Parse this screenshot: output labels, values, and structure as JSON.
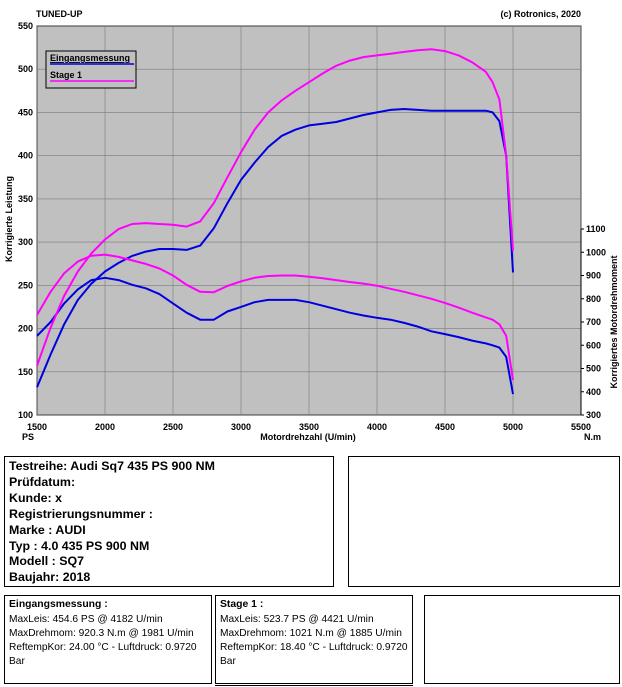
{
  "header": {
    "left_title": "TUNED-UP",
    "right_title": "(c) Rotronics, 2020"
  },
  "chart_data": {
    "type": "line",
    "xlabel": "Motordrehzahl (U/min)",
    "ylabel_left": "Korrigierte Leistung",
    "ylabel_right": "Korrigiertes Motordrehmoment",
    "unit_left": "PS",
    "unit_right": "N.m",
    "xlim": [
      1500,
      5500
    ],
    "ylim_left": [
      100,
      550
    ],
    "ylim_right": [
      300,
      1100
    ],
    "x_ticks": [
      "1500",
      "2000",
      "2500",
      "3000",
      "3500",
      "4000",
      "4500",
      "5000",
      "5500"
    ],
    "y_ticks_left": [
      "100",
      "150",
      "200",
      "250",
      "300",
      "350",
      "400",
      "450",
      "500",
      "550"
    ],
    "y_ticks_right": [
      "300",
      "400",
      "500",
      "600",
      "700",
      "800",
      "900",
      "1000",
      "1100"
    ],
    "grid": true,
    "legend_position": "top-left",
    "series": [
      {
        "name": "Eingangsmessung",
        "quantity": "power",
        "color": "#0000e0",
        "x": [
          1500,
          1600,
          1700,
          1800,
          1900,
          2000,
          2100,
          2200,
          2300,
          2400,
          2500,
          2600,
          2700,
          2800,
          2900,
          3000,
          3100,
          3200,
          3300,
          3400,
          3500,
          3600,
          3700,
          3800,
          3900,
          4000,
          4100,
          4200,
          4300,
          4400,
          4500,
          4600,
          4700,
          4800,
          4850,
          4900,
          4950,
          5000
        ],
        "values": [
          132,
          170,
          205,
          233,
          252,
          266,
          276,
          284,
          289,
          292,
          292,
          291,
          296,
          316,
          345,
          372,
          392,
          410,
          423,
          430,
          435,
          437,
          439,
          443,
          447,
          450,
          453,
          454,
          453,
          452,
          452,
          452,
          452,
          452,
          450,
          440,
          400,
          265
        ]
      },
      {
        "name": "Eingangsmessung",
        "quantity": "torque",
        "color": "#0000e0",
        "x": [
          1500,
          1600,
          1700,
          1800,
          1900,
          2000,
          2100,
          2200,
          2300,
          2400,
          2500,
          2600,
          2700,
          2800,
          2900,
          3000,
          3100,
          3200,
          3300,
          3400,
          3500,
          3600,
          3700,
          3800,
          3900,
          4000,
          4100,
          4200,
          4300,
          4400,
          4500,
          4600,
          4700,
          4800,
          4850,
          4900,
          4950,
          5000
        ],
        "values": [
          640,
          700,
          780,
          840,
          880,
          890,
          880,
          860,
          845,
          820,
          780,
          740,
          710,
          710,
          745,
          765,
          785,
          795,
          795,
          795,
          785,
          770,
          755,
          740,
          728,
          718,
          710,
          696,
          680,
          660,
          648,
          635,
          620,
          608,
          600,
          590,
          550,
          390
        ]
      },
      {
        "name": "Stage 1",
        "quantity": "power",
        "color": "#ff00ff",
        "x": [
          1500,
          1600,
          1700,
          1800,
          1900,
          2000,
          2100,
          2200,
          2300,
          2400,
          2500,
          2600,
          2700,
          2800,
          2900,
          3000,
          3100,
          3200,
          3300,
          3400,
          3500,
          3600,
          3700,
          3800,
          3900,
          4000,
          4100,
          4200,
          4300,
          4400,
          4500,
          4600,
          4700,
          4800,
          4850,
          4900,
          4950,
          5000
        ],
        "values": [
          157,
          201,
          238,
          266,
          287,
          303,
          315,
          321,
          322,
          321,
          320,
          318,
          324,
          345,
          375,
          404,
          430,
          450,
          464,
          475,
          485,
          495,
          504,
          510,
          514,
          516,
          518,
          520,
          522,
          523,
          521,
          516,
          508,
          497,
          485,
          465,
          400,
          290
        ]
      },
      {
        "name": "Stage 1",
        "quantity": "torque",
        "color": "#ff00ff",
        "x": [
          1500,
          1600,
          1700,
          1800,
          1900,
          2000,
          2100,
          2200,
          2300,
          2400,
          2500,
          2600,
          2700,
          2800,
          2900,
          3000,
          3100,
          3200,
          3300,
          3400,
          3500,
          3600,
          3700,
          3800,
          3900,
          4000,
          4100,
          4200,
          4300,
          4400,
          4500,
          4600,
          4700,
          4800,
          4850,
          4900,
          4950,
          5000
        ],
        "values": [
          730,
          830,
          910,
          960,
          985,
          990,
          980,
          965,
          950,
          930,
          900,
          860,
          830,
          828,
          855,
          875,
          890,
          898,
          900,
          900,
          895,
          888,
          880,
          872,
          865,
          856,
          843,
          830,
          815,
          800,
          782,
          762,
          740,
          720,
          710,
          690,
          640,
          450
        ]
      }
    ]
  },
  "info": {
    "testreihe": "Testreihe: Audi Sq7 435 PS 900 NM",
    "pruefdatum": "Prüfdatum:",
    "kunde": "Kunde: x",
    "registrierung": "Registrierungsnummer  :",
    "marke": "Marke  : AUDI",
    "typ": "Typ  : 4.0 435 PS 900 NM",
    "modell": "Modell  : SQ7",
    "baujahr": "Baujahr: 2018"
  },
  "runs": [
    {
      "title": "Eingangsmessung :",
      "maxleis": "MaxLeis: 454.6 PS @ 4182 U/min",
      "maxdreh": "MaxDrehmom: 920.3 N.m @ 1981 U/min",
      "reftemp": "ReftempKor: 24.00 °C - Luftdruck: 0.9720 Bar"
    },
    {
      "title": "Stage 1 :",
      "maxleis": "MaxLeis: 523.7 PS @ 4421 U/min",
      "maxdreh": "MaxDrehmom: 1021 N.m @ 1885 U/min",
      "reftemp": "ReftempKor: 18.40 °C - Luftdruck: 0.9720 Bar"
    }
  ]
}
